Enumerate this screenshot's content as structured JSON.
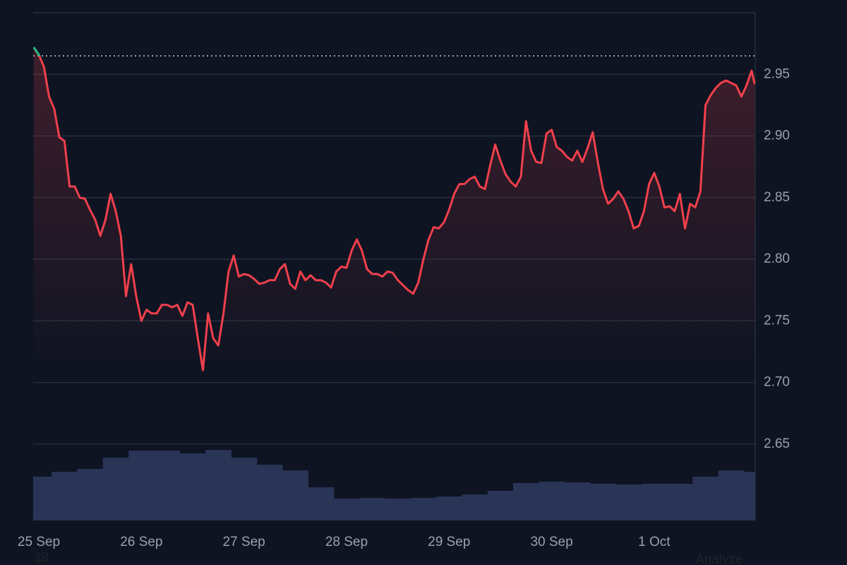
{
  "chart_data": {
    "type": "line",
    "x": [
      -0.05,
      0,
      0.05,
      0.1,
      0.15,
      0.2,
      0.25,
      0.3,
      0.35,
      0.4,
      0.45,
      0.5,
      0.55,
      0.6,
      0.65,
      0.7,
      0.75,
      0.8,
      0.85,
      0.9,
      0.95,
      1,
      1.05,
      1.1,
      1.15,
      1.2,
      1.25,
      1.3,
      1.35,
      1.4,
      1.45,
      1.5,
      1.55,
      1.6,
      1.65,
      1.7,
      1.75,
      1.8,
      1.85,
      1.9,
      1.95,
      2,
      2.05,
      2.1,
      2.15,
      2.2,
      2.25,
      2.3,
      2.35,
      2.4,
      2.45,
      2.5,
      2.55,
      2.6,
      2.65,
      2.7,
      2.75,
      2.8,
      2.85,
      2.9,
      2.95,
      3,
      3.05,
      3.1,
      3.15,
      3.2,
      3.25,
      3.3,
      3.35,
      3.4,
      3.45,
      3.5,
      3.55,
      3.6,
      3.65,
      3.7,
      3.75,
      3.8,
      3.85,
      3.9,
      3.95,
      4,
      4.05,
      4.1,
      4.15,
      4.2,
      4.25,
      4.3,
      4.35,
      4.4,
      4.45,
      4.5,
      4.55,
      4.6,
      4.65,
      4.7,
      4.75,
      4.8,
      4.85,
      4.9,
      4.95,
      5,
      5.05,
      5.1,
      5.15,
      5.2,
      5.25,
      5.3,
      5.35,
      5.4,
      5.45,
      5.5,
      5.55,
      5.6,
      5.65,
      5.7,
      5.75,
      5.8,
      5.85,
      5.9,
      5.95,
      6,
      6.05,
      6.1,
      6.15,
      6.2,
      6.25,
      6.3,
      6.35,
      6.4,
      6.45,
      6.5,
      6.55,
      6.6,
      6.65,
      6.7,
      6.75,
      6.8,
      6.85,
      6.9,
      6.95,
      6.98
    ],
    "values": [
      2.972,
      2.966,
      2.956,
      2.932,
      2.922,
      2.899,
      2.896,
      2.859,
      2.859,
      2.85,
      2.849,
      2.84,
      2.832,
      2.819,
      2.832,
      2.853,
      2.839,
      2.819,
      2.77,
      2.796,
      2.77,
      2.75,
      2.759,
      2.756,
      2.756,
      2.763,
      2.763,
      2.761,
      2.763,
      2.754,
      2.765,
      2.763,
      2.736,
      2.71,
      2.756,
      2.736,
      2.73,
      2.756,
      2.79,
      2.803,
      2.786,
      2.788,
      2.787,
      2.784,
      2.78,
      2.781,
      2.783,
      2.783,
      2.792,
      2.796,
      2.78,
      2.776,
      2.79,
      2.783,
      2.787,
      2.783,
      2.783,
      2.781,
      2.777,
      2.79,
      2.794,
      2.793,
      2.807,
      2.816,
      2.807,
      2.792,
      2.788,
      2.788,
      2.786,
      2.79,
      2.789,
      2.783,
      2.779,
      2.775,
      2.772,
      2.781,
      2.8,
      2.816,
      2.826,
      2.825,
      2.83,
      2.84,
      2.853,
      2.861,
      2.861,
      2.865,
      2.867,
      2.859,
      2.857,
      2.876,
      2.893,
      2.88,
      2.869,
      2.863,
      2.859,
      2.867,
      2.912,
      2.888,
      2.879,
      2.878,
      2.902,
      2.905,
      2.891,
      2.888,
      2.883,
      2.88,
      2.888,
      2.879,
      2.89,
      2.903,
      2.879,
      2.857,
      2.845,
      2.849,
      2.855,
      2.849,
      2.839,
      2.825,
      2.827,
      2.839,
      2.861,
      2.87,
      2.859,
      2.842,
      2.843,
      2.839,
      2.853,
      2.825,
      2.845,
      2.842,
      2.855,
      2.925,
      2.933,
      2.939,
      2.943,
      2.945,
      2.943,
      2.941,
      2.932,
      2.941,
      2.953,
      2.942
    ],
    "color": "#f0404c",
    "up_color": "#2ebd85",
    "reference": 2.965,
    "volume": {
      "x": [
        0,
        0.25,
        0.5,
        0.75,
        1,
        1.25,
        1.5,
        1.75,
        2,
        2.25,
        2.5,
        2.75,
        3,
        3.25,
        3.5,
        3.75,
        4,
        4.25,
        4.5,
        4.75,
        5,
        5.25,
        5.5,
        5.75,
        6,
        6.25,
        6.5,
        6.75,
        7
      ],
      "values": [
        62,
        69,
        73,
        89,
        99,
        99,
        95,
        100,
        89,
        79,
        71,
        47,
        31,
        32,
        31,
        32,
        34,
        37,
        42,
        53,
        55,
        54,
        52,
        51,
        52,
        52,
        62,
        71,
        69
      ],
      "color": "#293457"
    },
    "xlim": [
      -0.055,
      6.985
    ],
    "ylim": [
      2.588,
      3.0
    ],
    "y2lim": [
      0,
      719
    ],
    "xticks": [
      {
        "value": 0,
        "label": "25 Sep"
      },
      {
        "value": 1,
        "label": "26 Sep"
      },
      {
        "value": 2,
        "label": "27 Sep"
      },
      {
        "value": 3,
        "label": "28 Sep"
      },
      {
        "value": 4,
        "label": "29 Sep"
      },
      {
        "value": 5,
        "label": "30 Sep"
      },
      {
        "value": 6,
        "label": "1 Oct"
      }
    ],
    "yticks": [
      2.65,
      {
        "value": 2.7,
        "label": "2.70"
      },
      2.75,
      {
        "value": 2.8,
        "label": "2.80"
      },
      2.85,
      {
        "value": 2.9,
        "label": "2.90"
      },
      2.95
    ],
    "grid": true
  },
  "footer": {
    "left": "38",
    "right": "Analyze"
  }
}
